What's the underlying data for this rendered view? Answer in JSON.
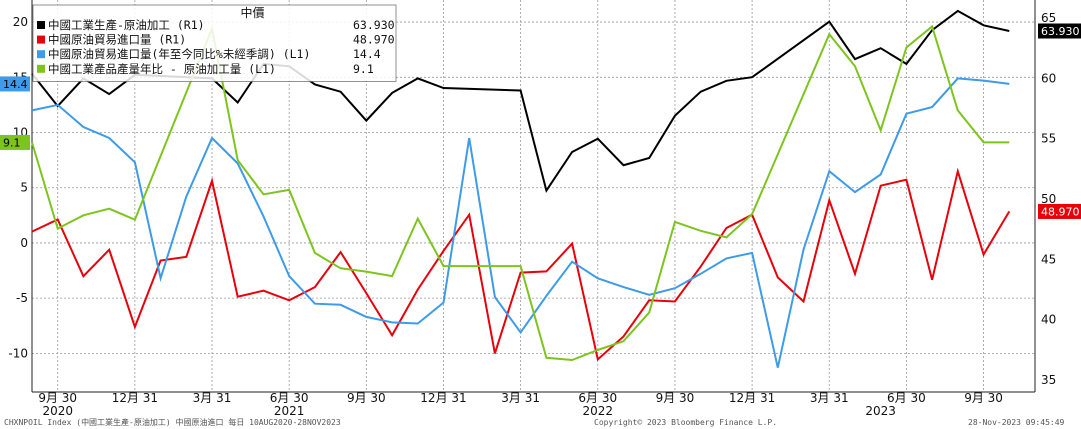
{
  "chart_data": {
    "type": "line",
    "legend": {
      "title": "中價",
      "placement": "top-left",
      "entries": [
        {
          "label": "中國工業生產-原油加工 (R1)",
          "value": "63.930",
          "color": "#000000"
        },
        {
          "label": "中國原油貿易進口量 (R1)",
          "value": "48.970",
          "color": "#e8000b"
        },
        {
          "label": "中國原油貿易進口量(年至今同比%未經季調) (L1)",
          "value": "14.4",
          "color": "#3d9be9"
        },
        {
          "label": "中國工業產品產量年比 - 原油加工量 (L1)",
          "value": "9.1",
          "color": "#7ec41f"
        }
      ]
    },
    "left_axis": {
      "ylim": [
        -13.5,
        22
      ],
      "ticks": [
        -10,
        -5,
        0,
        5,
        10,
        15,
        20
      ],
      "tick_labels": [
        "-10",
        "-5",
        "0",
        "5",
        "10",
        "15",
        "20"
      ]
    },
    "right_axis": {
      "ylim": [
        34,
        66.5
      ],
      "ticks": [
        35,
        40,
        45,
        50,
        55,
        60,
        65
      ],
      "tick_labels": [
        "35",
        "40",
        "45",
        "50",
        "55",
        "60",
        "65"
      ]
    },
    "x_axis": {
      "start": "2020-08",
      "end": "2023-11",
      "tick_labels": [
        {
          "date": "2020-09",
          "label": "9月 30"
        },
        {
          "date": "2020-12",
          "label": "12月 31"
        },
        {
          "date": "2021-03",
          "label": "3月 31"
        },
        {
          "date": "2021-06",
          "label": "6月 30"
        },
        {
          "date": "2021-09",
          "label": "9月 30"
        },
        {
          "date": "2021-12",
          "label": "12月 31"
        },
        {
          "date": "2022-03",
          "label": "3月 31"
        },
        {
          "date": "2022-06",
          "label": "6月 30"
        },
        {
          "date": "2022-09",
          "label": "9月 30"
        },
        {
          "date": "2022-12",
          "label": "12月 31"
        },
        {
          "date": "2023-03",
          "label": "3月 31"
        },
        {
          "date": "2023-06",
          "label": "6月 30"
        },
        {
          "date": "2023-09",
          "label": "9月 30"
        }
      ],
      "year_labels": [
        {
          "date": "2020-09",
          "label": "2020"
        },
        {
          "date": "2021-06",
          "label": "2021"
        },
        {
          "date": "2022-06",
          "label": "2022"
        },
        {
          "date": "2023-05",
          "label": "2023"
        }
      ]
    },
    "grid": true,
    "series": [
      {
        "name": "中國工業生產-原油加工 (R1)",
        "axis": "right",
        "color": "#000000",
        "x": [
          "2020-08",
          "2020-09",
          "2020-10",
          "2020-11",
          "2020-12",
          "2021-03",
          "2021-04",
          "2021-05",
          "2021-06",
          "2021-07",
          "2021-08",
          "2021-09",
          "2021-10",
          "2021-11",
          "2021-12",
          "2022-03",
          "2022-04",
          "2022-05",
          "2022-06",
          "2022-07",
          "2022-08",
          "2022-09",
          "2022-10",
          "2022-11",
          "2022-12",
          "2023-03",
          "2023-04",
          "2023-05",
          "2023-06",
          "2023-07",
          "2023-08",
          "2023-09",
          "2023-10"
        ],
        "values": [
          60.4,
          57.7,
          60.0,
          58.7,
          60.3,
          60.0,
          58.0,
          61.2,
          61.0,
          59.5,
          58.9,
          56.5,
          58.8,
          60.0,
          59.2,
          59.0,
          50.7,
          53.9,
          55.0,
          52.8,
          53.4,
          56.9,
          58.9,
          59.8,
          60.1,
          64.7,
          61.6,
          62.5,
          61.2,
          64.0,
          65.6,
          64.4,
          63.93
        ]
      },
      {
        "name": "中國原油貿易進口量 (R1)",
        "axis": "right",
        "color": "#e8000b",
        "x": [
          "2020-08",
          "2020-09",
          "2020-10",
          "2020-11",
          "2020-12",
          "2021-01",
          "2021-02",
          "2021-03",
          "2021-04",
          "2021-05",
          "2021-06",
          "2021-07",
          "2021-08",
          "2021-09",
          "2021-10",
          "2021-11",
          "2021-12",
          "2022-01",
          "2022-02",
          "2022-03",
          "2022-04",
          "2022-05",
          "2022-06",
          "2022-07",
          "2022-08",
          "2022-09",
          "2022-10",
          "2022-11",
          "2022-12",
          "2023-01",
          "2023-02",
          "2023-03",
          "2023-04",
          "2023-05",
          "2023-06",
          "2023-07",
          "2023-08",
          "2023-09",
          "2023-10"
        ],
        "values": [
          47.3,
          48.3,
          43.6,
          45.8,
          39.4,
          44.9,
          45.2,
          51.5,
          41.9,
          42.4,
          41.6,
          42.7,
          45.6,
          42.2,
          38.7,
          42.5,
          45.7,
          48.7,
          37.2,
          43.9,
          44.0,
          46.3,
          36.7,
          38.6,
          41.6,
          41.5,
          44.4,
          47.6,
          48.7,
          43.5,
          41.5,
          49.9,
          43.8,
          51.1,
          51.6,
          43.3,
          52.3,
          45.4,
          48.97
        ]
      },
      {
        "name": "中國原油貿易進口量(年至今同比%未經季調) (L1)",
        "axis": "left",
        "color": "#3d9be9",
        "x": [
          "2020-08",
          "2020-09",
          "2020-10",
          "2020-11",
          "2020-12",
          "2021-01",
          "2021-02",
          "2021-03",
          "2021-04",
          "2021-05",
          "2021-06",
          "2021-07",
          "2021-08",
          "2021-09",
          "2021-10",
          "2021-11",
          "2021-12",
          "2022-01",
          "2022-02",
          "2022-03",
          "2022-04",
          "2022-05",
          "2022-06",
          "2022-07",
          "2022-08",
          "2022-09",
          "2022-10",
          "2022-11",
          "2022-12",
          "2023-01",
          "2023-02",
          "2023-03",
          "2023-04",
          "2023-05",
          "2023-06",
          "2023-07",
          "2023-08",
          "2023-09",
          "2023-10"
        ],
        "values": [
          12.0,
          12.5,
          10.5,
          9.5,
          7.3,
          -3.2,
          4.2,
          9.5,
          7.2,
          2.4,
          -3.0,
          -5.5,
          -5.6,
          -6.7,
          -7.2,
          -7.3,
          -5.4,
          9.5,
          -4.9,
          -8.1,
          -4.8,
          -1.7,
          -3.2,
          -4.0,
          -4.7,
          -4.1,
          -2.8,
          -1.4,
          -0.9,
          -11.3,
          -0.6,
          6.5,
          4.6,
          6.2,
          11.7,
          12.3,
          14.9,
          14.7,
          14.4
        ]
      },
      {
        "name": "中國工業產品產量年比 - 原油加工量 (L1)",
        "axis": "left",
        "color": "#7ec41f",
        "x": [
          "2020-08",
          "2020-09",
          "2020-10",
          "2020-11",
          "2020-12",
          "2021-03",
          "2021-04",
          "2021-05",
          "2021-06",
          "2021-07",
          "2021-08",
          "2021-09",
          "2021-10",
          "2021-11",
          "2021-12",
          "2022-03",
          "2022-04",
          "2022-05",
          "2022-06",
          "2022-07",
          "2022-08",
          "2022-09",
          "2022-10",
          "2022-11",
          "2022-12",
          "2023-03",
          "2023-04",
          "2023-05",
          "2023-06",
          "2023-07",
          "2023-08",
          "2023-09",
          "2023-10"
        ],
        "values": [
          9.1,
          1.3,
          2.5,
          3.1,
          2.1,
          19.4,
          7.5,
          4.4,
          4.8,
          -0.9,
          -2.3,
          -2.6,
          -3.0,
          2.2,
          -2.1,
          -2.1,
          -10.4,
          -10.6,
          -9.7,
          -8.9,
          -6.3,
          1.9,
          1.1,
          0.5,
          2.6,
          18.9,
          16.0,
          10.2,
          17.7,
          19.6,
          12.0,
          9.1,
          9.1
        ]
      }
    ],
    "value_badges": [
      {
        "axis": "left",
        "value": "14.4",
        "at": 14.4,
        "bg": "#3d9be9",
        "fg": "#000000"
      },
      {
        "axis": "left",
        "value": "9.1",
        "at": 9.1,
        "bg": "#7ec41f",
        "fg": "#000000"
      },
      {
        "axis": "right",
        "value": "63.930",
        "at": 63.93,
        "bg": "#000000",
        "fg": "#ffffff"
      },
      {
        "axis": "right",
        "value": "48.970",
        "at": 48.97,
        "bg": "#e8000b",
        "fg": "#ffffff"
      }
    ]
  },
  "footer": {
    "left": "CHXNPOIL Index (中國工業生產-原油加工) 中國原油進口  每日 10AUG2020-28NOV2023",
    "center": "Copyright© 2023 Bloomberg Finance L.P.",
    "right": "28-Nov-2023 09:45:49"
  }
}
